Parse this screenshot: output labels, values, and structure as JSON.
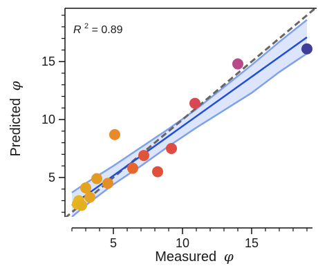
{
  "chart_data": {
    "type": "scatter",
    "xlabel": "Measured",
    "ylabel": "Predicted",
    "axis_symbol": "φ",
    "xlim": [
      1.5,
      19.7
    ],
    "ylim": [
      1.6,
      19.6
    ],
    "x_ticks": [
      5,
      10,
      15
    ],
    "y_ticks": [
      5,
      10,
      15
    ],
    "x_tick_labels": [
      "5",
      "10",
      "15"
    ],
    "y_tick_labels": [
      "5",
      "10",
      "15"
    ],
    "minor_tick_step": 1,
    "grid": false,
    "annotation": {
      "prefix": "R",
      "superscript": "2",
      "suffix": " = 0.89"
    },
    "identity_line": {
      "x": [
        1.5,
        19.7
      ],
      "y": [
        1.5,
        19.7
      ],
      "color": "#666666",
      "style": "dashed"
    },
    "fit_line": {
      "x": [
        2.0,
        19.0
      ],
      "y": [
        2.6,
        17.1
      ],
      "color": "#1f4fd8"
    },
    "confidence_band": {
      "x": [
        2.0,
        3.0,
        5.0,
        7.0,
        9.0,
        11.0,
        13.0,
        15.0,
        17.0,
        19.0
      ],
      "upper": [
        3.7,
        4.5,
        6.0,
        7.6,
        9.2,
        10.9,
        12.8,
        14.7,
        16.7,
        18.6
      ],
      "lower": [
        1.6,
        2.6,
        4.4,
        6.0,
        7.7,
        9.3,
        10.8,
        12.3,
        14.1,
        15.7
      ],
      "fill": "#dce5fb",
      "edge": "#7fa0ec"
    },
    "points": [
      {
        "x": 2.4,
        "y": 2.7,
        "color": "#e8b51c"
      },
      {
        "x": 2.5,
        "y": 3.0,
        "color": "#e8b51c"
      },
      {
        "x": 2.7,
        "y": 2.6,
        "color": "#e4b01e"
      },
      {
        "x": 3.0,
        "y": 4.1,
        "color": "#e4a322"
      },
      {
        "x": 3.3,
        "y": 3.3,
        "color": "#e4a322"
      },
      {
        "x": 3.8,
        "y": 4.9,
        "color": "#e29b24"
      },
      {
        "x": 4.6,
        "y": 4.5,
        "color": "#e38f28"
      },
      {
        "x": 5.1,
        "y": 8.7,
        "color": "#e88a2a"
      },
      {
        "x": 6.4,
        "y": 5.8,
        "color": "#e6662e"
      },
      {
        "x": 7.2,
        "y": 6.9,
        "color": "#e0543a"
      },
      {
        "x": 8.2,
        "y": 5.5,
        "color": "#e1503c"
      },
      {
        "x": 9.2,
        "y": 7.5,
        "color": "#df4c42"
      },
      {
        "x": 10.9,
        "y": 11.4,
        "color": "#d84852"
      },
      {
        "x": 14.0,
        "y": 14.8,
        "color": "#b94a8a"
      },
      {
        "x": 19.0,
        "y": 16.1,
        "color": "#3f3e98"
      }
    ]
  }
}
